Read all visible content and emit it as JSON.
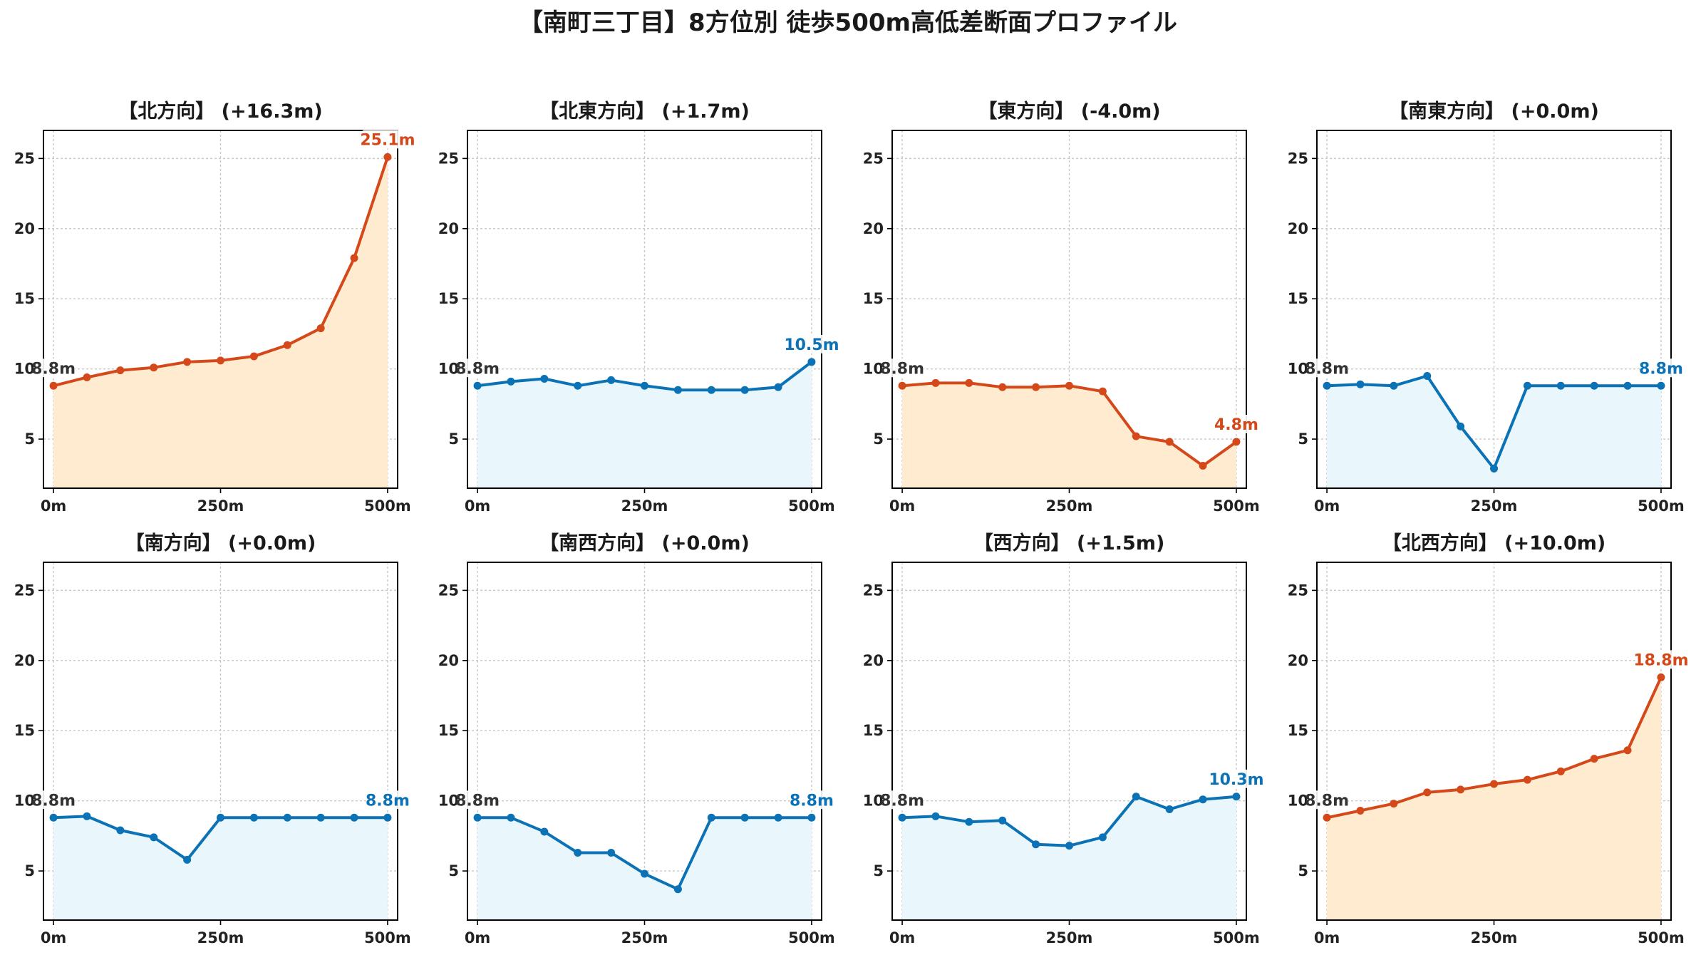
{
  "figure": {
    "title": "【南町三丁目】8方位別 徒歩500m高低差断面プロファイル"
  },
  "colors": {
    "up_line": "#d4481a",
    "up_fill": "#ffecd0",
    "down_line": "#0a72b5",
    "down_fill": "#e9f6fb",
    "start_label": "#333333"
  },
  "chart_data": [
    {
      "type": "area",
      "title": "【北方向】 (+16.3m)",
      "trend": "up",
      "x": [
        0,
        50,
        100,
        150,
        200,
        250,
        300,
        350,
        400,
        450,
        500
      ],
      "y": [
        8.8,
        9.4,
        9.9,
        10.1,
        10.5,
        10.6,
        10.9,
        11.7,
        12.9,
        17.9,
        25.1
      ],
      "xticks": [
        "0m",
        "250m",
        "500m"
      ],
      "yticks": [
        5,
        10,
        15,
        20,
        25
      ],
      "xlim": [
        -15,
        515
      ],
      "ylim": [
        1.5,
        27
      ],
      "start_label": "8.8m",
      "end_label": "25.1m",
      "grid": true
    },
    {
      "type": "area",
      "title": "【北東方向】 (+1.7m)",
      "trend": "down",
      "x": [
        0,
        50,
        100,
        150,
        200,
        250,
        300,
        350,
        400,
        450,
        500
      ],
      "y": [
        8.8,
        9.1,
        9.3,
        8.8,
        9.2,
        8.8,
        8.5,
        8.5,
        8.5,
        8.7,
        10.5
      ],
      "xticks": [
        "0m",
        "250m",
        "500m"
      ],
      "yticks": [
        5,
        10,
        15,
        20,
        25
      ],
      "xlim": [
        -15,
        515
      ],
      "ylim": [
        1.5,
        27
      ],
      "start_label": "8.8m",
      "end_label": "10.5m",
      "grid": true
    },
    {
      "type": "area",
      "title": "【東方向】 (-4.0m)",
      "trend": "up",
      "x": [
        0,
        50,
        100,
        150,
        200,
        250,
        300,
        350,
        400,
        450,
        500
      ],
      "y": [
        8.8,
        9.0,
        9.0,
        8.7,
        8.7,
        8.8,
        8.4,
        5.2,
        4.8,
        3.1,
        4.8
      ],
      "xticks": [
        "0m",
        "250m",
        "500m"
      ],
      "yticks": [
        5,
        10,
        15,
        20,
        25
      ],
      "xlim": [
        -15,
        515
      ],
      "ylim": [
        1.5,
        27
      ],
      "start_label": "8.8m",
      "end_label": "4.8m",
      "grid": true
    },
    {
      "type": "area",
      "title": "【南東方向】 (+0.0m)",
      "trend": "down",
      "x": [
        0,
        50,
        100,
        150,
        200,
        250,
        300,
        350,
        400,
        450,
        500
      ],
      "y": [
        8.8,
        8.9,
        8.8,
        9.5,
        5.9,
        2.9,
        8.8,
        8.8,
        8.8,
        8.8,
        8.8
      ],
      "xticks": [
        "0m",
        "250m",
        "500m"
      ],
      "yticks": [
        5,
        10,
        15,
        20,
        25
      ],
      "xlim": [
        -15,
        515
      ],
      "ylim": [
        1.5,
        27
      ],
      "start_label": "8.8m",
      "end_label": "8.8m",
      "grid": true
    },
    {
      "type": "area",
      "title": "【南方向】 (+0.0m)",
      "trend": "down",
      "x": [
        0,
        50,
        100,
        150,
        200,
        250,
        300,
        350,
        400,
        450,
        500
      ],
      "y": [
        8.8,
        8.9,
        7.9,
        7.4,
        5.8,
        8.8,
        8.8,
        8.8,
        8.8,
        8.8,
        8.8
      ],
      "xticks": [
        "0m",
        "250m",
        "500m"
      ],
      "yticks": [
        5,
        10,
        15,
        20,
        25
      ],
      "xlim": [
        -15,
        515
      ],
      "ylim": [
        1.5,
        27
      ],
      "start_label": "8.8m",
      "end_label": "8.8m",
      "grid": true
    },
    {
      "type": "area",
      "title": "【南西方向】 (+0.0m)",
      "trend": "down",
      "x": [
        0,
        50,
        100,
        150,
        200,
        250,
        300,
        350,
        400,
        450,
        500
      ],
      "y": [
        8.8,
        8.8,
        7.8,
        6.3,
        6.3,
        4.8,
        3.7,
        8.8,
        8.8,
        8.8,
        8.8
      ],
      "xticks": [
        "0m",
        "250m",
        "500m"
      ],
      "yticks": [
        5,
        10,
        15,
        20,
        25
      ],
      "xlim": [
        -15,
        515
      ],
      "ylim": [
        1.5,
        27
      ],
      "start_label": "8.8m",
      "end_label": "8.8m",
      "grid": true
    },
    {
      "type": "area",
      "title": "【西方向】 (+1.5m)",
      "trend": "down",
      "x": [
        0,
        50,
        100,
        150,
        200,
        250,
        300,
        350,
        400,
        450,
        500
      ],
      "y": [
        8.8,
        8.9,
        8.5,
        8.6,
        6.9,
        6.8,
        7.4,
        10.3,
        9.4,
        10.1,
        10.3
      ],
      "xticks": [
        "0m",
        "250m",
        "500m"
      ],
      "yticks": [
        5,
        10,
        15,
        20,
        25
      ],
      "xlim": [
        -15,
        515
      ],
      "ylim": [
        1.5,
        27
      ],
      "start_label": "8.8m",
      "end_label": "10.3m",
      "grid": true
    },
    {
      "type": "area",
      "title": "【北西方向】 (+10.0m)",
      "trend": "up",
      "x": [
        0,
        50,
        100,
        150,
        200,
        250,
        300,
        350,
        400,
        450,
        500
      ],
      "y": [
        8.8,
        9.3,
        9.8,
        10.6,
        10.8,
        11.2,
        11.5,
        12.1,
        13.0,
        13.6,
        18.8
      ],
      "xticks": [
        "0m",
        "250m",
        "500m"
      ],
      "yticks": [
        5,
        10,
        15,
        20,
        25
      ],
      "xlim": [
        -15,
        515
      ],
      "ylim": [
        1.5,
        27
      ],
      "start_label": "8.8m",
      "end_label": "18.8m",
      "grid": true
    }
  ]
}
